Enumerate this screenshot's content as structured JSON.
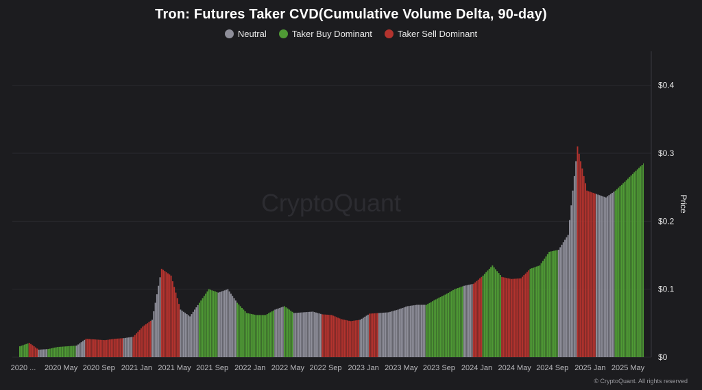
{
  "chart_data": {
    "type": "bar",
    "title": "Tron: Futures Taker CVD(Cumulative Volume Delta, 90-day)",
    "ylabel": "Price",
    "ylim": [
      0,
      0.45
    ],
    "yticks": [
      "$0",
      "$0.1",
      "$0.2",
      "$0.3",
      "$0.4"
    ],
    "x_tick_labels": [
      "2020 ...",
      "2020 May",
      "2020 Sep",
      "2021 Jan",
      "2021 May",
      "2021 Sep",
      "2022 Jan",
      "2022 May",
      "2022 Sep",
      "2023 Jan",
      "2023 May",
      "2023 Sep",
      "2024 Jan",
      "2024 May",
      "2024 Sep",
      "2025 Jan",
      "2025 May"
    ],
    "x_start": "2020-01",
    "x_end": "2025-07",
    "legend": [
      {
        "name": "Neutral",
        "color": "#8e8e99"
      },
      {
        "name": "Taker Buy Dominant",
        "color": "#4f9a35"
      },
      {
        "name": "Taker Sell Dominant",
        "color": "#b3332e"
      }
    ],
    "legend_position": "top-center",
    "grid": true,
    "series_price": [
      [
        "2020-01",
        0.016,
        "buy"
      ],
      [
        "2020-02",
        0.021,
        "sell"
      ],
      [
        "2020-03",
        0.011,
        "neutral"
      ],
      [
        "2020-04",
        0.012,
        "buy"
      ],
      [
        "2020-05",
        0.015,
        "buy"
      ],
      [
        "2020-06",
        0.016,
        "buy"
      ],
      [
        "2020-07",
        0.017,
        "neutral"
      ],
      [
        "2020-08",
        0.027,
        "sell"
      ],
      [
        "2020-09",
        0.026,
        "sell"
      ],
      [
        "2020-10",
        0.025,
        "sell"
      ],
      [
        "2020-11",
        0.027,
        "sell"
      ],
      [
        "2020-12",
        0.028,
        "neutral"
      ],
      [
        "2021-01",
        0.03,
        "sell"
      ],
      [
        "2021-02",
        0.045,
        "sell"
      ],
      [
        "2021-03",
        0.055,
        "neutral"
      ],
      [
        "2021-04",
        0.13,
        "sell"
      ],
      [
        "2021-05",
        0.12,
        "sell"
      ],
      [
        "2021-06",
        0.07,
        "neutral"
      ],
      [
        "2021-07",
        0.06,
        "neutral"
      ],
      [
        "2021-08",
        0.08,
        "buy"
      ],
      [
        "2021-09",
        0.1,
        "buy"
      ],
      [
        "2021-10",
        0.095,
        "neutral"
      ],
      [
        "2021-11",
        0.1,
        "neutral"
      ],
      [
        "2021-12",
        0.08,
        "buy"
      ],
      [
        "2022-01",
        0.065,
        "buy"
      ],
      [
        "2022-02",
        0.062,
        "buy"
      ],
      [
        "2022-03",
        0.062,
        "buy"
      ],
      [
        "2022-04",
        0.07,
        "neutral"
      ],
      [
        "2022-05",
        0.075,
        "buy"
      ],
      [
        "2022-06",
        0.065,
        "neutral"
      ],
      [
        "2022-07",
        0.066,
        "neutral"
      ],
      [
        "2022-08",
        0.067,
        "neutral"
      ],
      [
        "2022-09",
        0.063,
        "sell"
      ],
      [
        "2022-10",
        0.062,
        "sell"
      ],
      [
        "2022-11",
        0.056,
        "sell"
      ],
      [
        "2022-12",
        0.053,
        "sell"
      ],
      [
        "2023-01",
        0.055,
        "neutral"
      ],
      [
        "2023-02",
        0.064,
        "sell"
      ],
      [
        "2023-03",
        0.065,
        "neutral"
      ],
      [
        "2023-04",
        0.066,
        "neutral"
      ],
      [
        "2023-05",
        0.07,
        "neutral"
      ],
      [
        "2023-06",
        0.075,
        "neutral"
      ],
      [
        "2023-07",
        0.077,
        "neutral"
      ],
      [
        "2023-08",
        0.077,
        "buy"
      ],
      [
        "2023-09",
        0.085,
        "buy"
      ],
      [
        "2023-10",
        0.092,
        "buy"
      ],
      [
        "2023-11",
        0.1,
        "buy"
      ],
      [
        "2023-12",
        0.105,
        "neutral"
      ],
      [
        "2024-01",
        0.108,
        "sell"
      ],
      [
        "2024-02",
        0.12,
        "buy"
      ],
      [
        "2024-03",
        0.135,
        "buy"
      ],
      [
        "2024-04",
        0.118,
        "sell"
      ],
      [
        "2024-05",
        0.115,
        "sell"
      ],
      [
        "2024-06",
        0.116,
        "sell"
      ],
      [
        "2024-07",
        0.13,
        "buy"
      ],
      [
        "2024-08",
        0.135,
        "buy"
      ],
      [
        "2024-09",
        0.155,
        "buy"
      ],
      [
        "2024-10",
        0.158,
        "neutral"
      ],
      [
        "2024-11",
        0.18,
        "neutral"
      ],
      [
        "2024-12",
        0.31,
        "sell"
      ],
      [
        "2025-01",
        0.245,
        "sell"
      ],
      [
        "2025-02",
        0.24,
        "neutral"
      ],
      [
        "2025-03",
        0.235,
        "neutral"
      ],
      [
        "2025-04",
        0.245,
        "buy"
      ],
      [
        "2025-05",
        0.258,
        "buy"
      ],
      [
        "2025-06",
        0.272,
        "buy"
      ],
      [
        "2025-07",
        0.285,
        "buy"
      ]
    ]
  },
  "watermark": "CryptoQuant",
  "credit": "© CryptoQuant. All rights reserved"
}
